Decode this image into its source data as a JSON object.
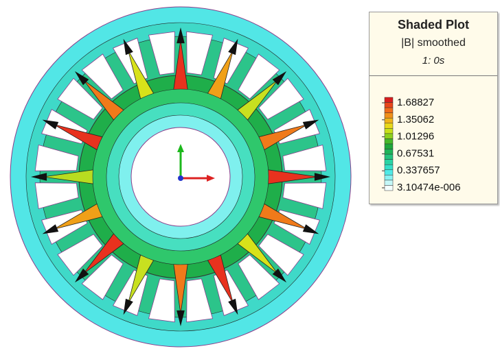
{
  "legend": {
    "title": "Shaded Plot",
    "quantity": "|B| smoothed",
    "time": "1: 0s",
    "levels": [
      "1.68827",
      "1.35062",
      "1.01296",
      "0.67531",
      "0.337657",
      "3.10474e-006"
    ]
  }
}
